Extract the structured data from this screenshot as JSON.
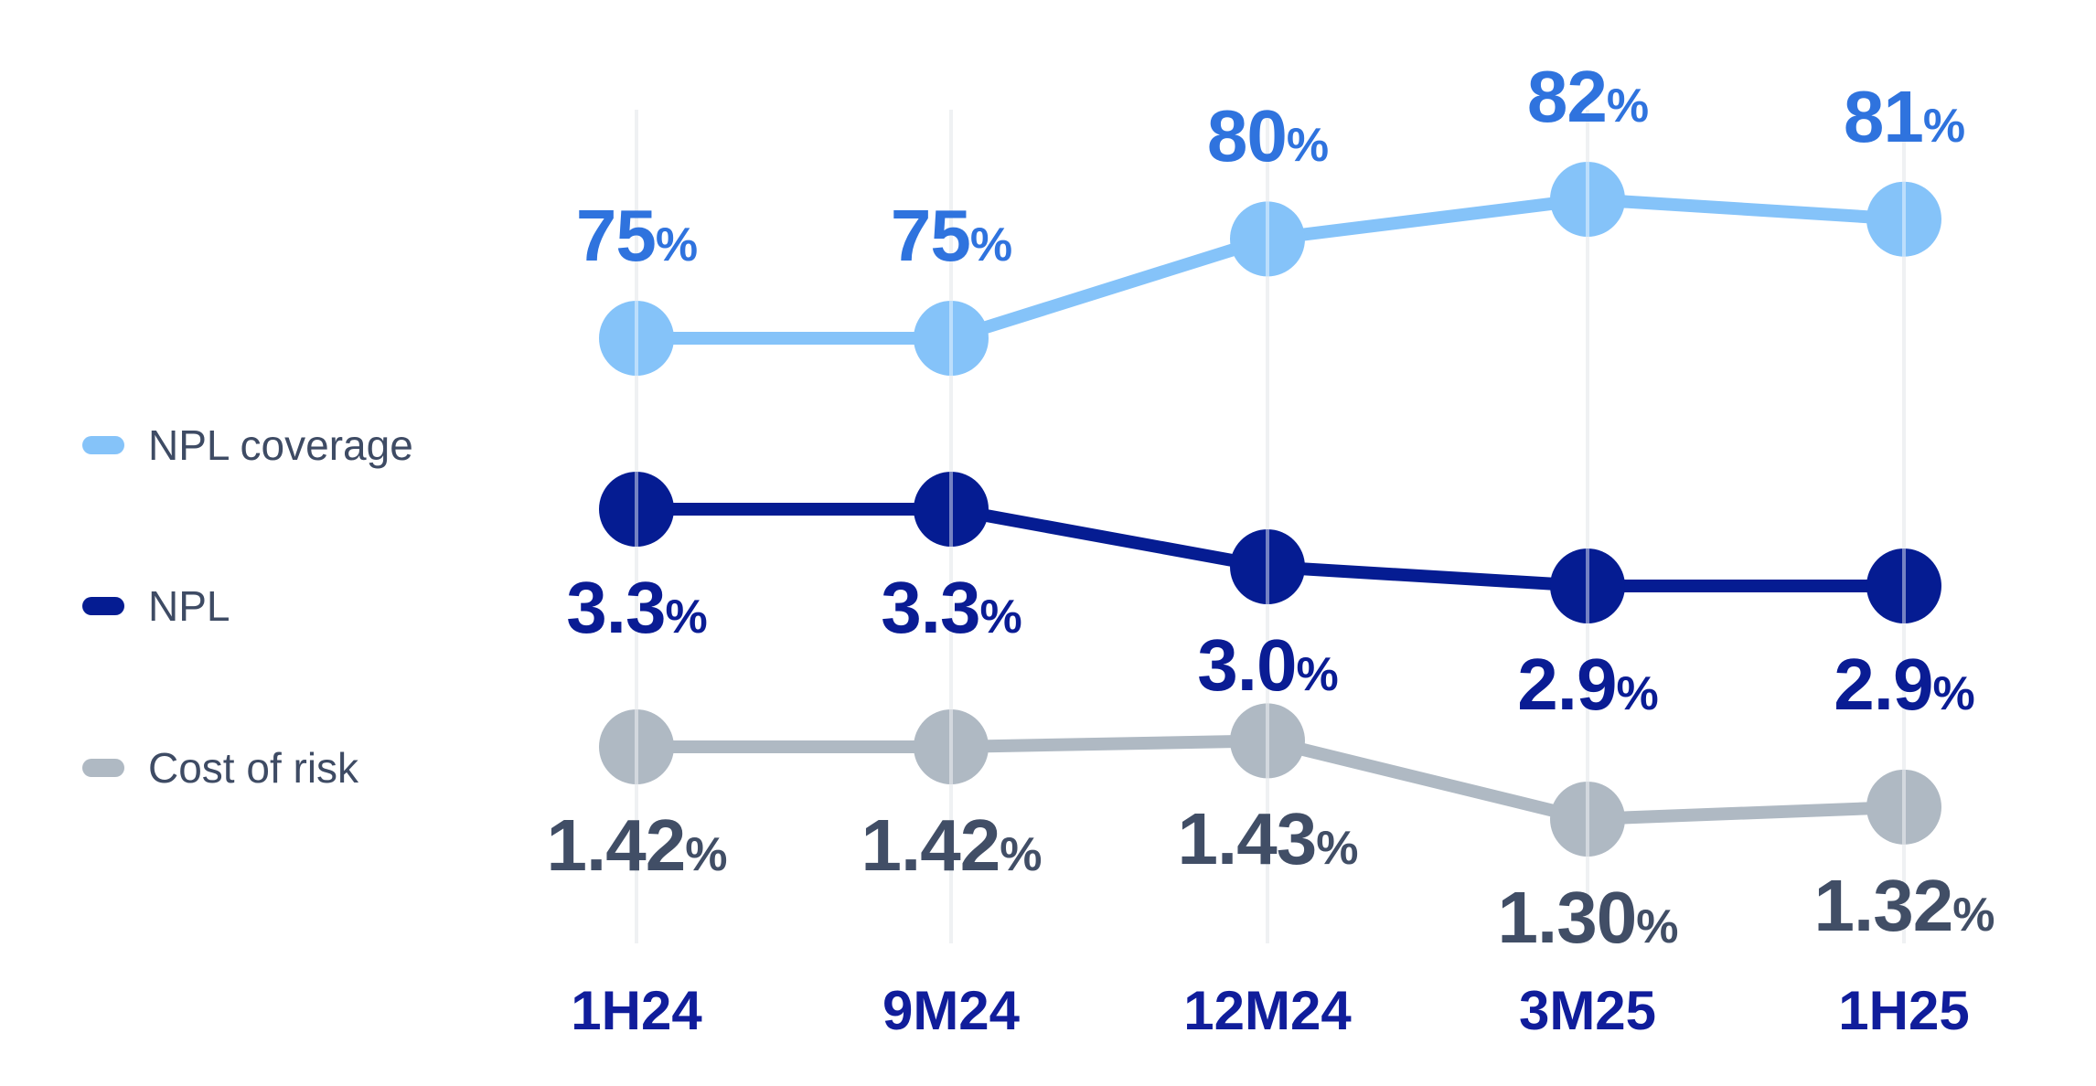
{
  "chart_data": {
    "type": "line",
    "categories": [
      "1H24",
      "9M24",
      "12M24",
      "3M25",
      "1H25"
    ],
    "series": [
      {
        "name": "NPL coverage",
        "values": [
          75,
          75,
          80,
          82,
          81
        ],
        "labels": [
          {
            "num": "75",
            "suffix": "%"
          },
          {
            "num": "75",
            "suffix": "%"
          },
          {
            "num": "80",
            "suffix": "%"
          },
          {
            "num": "82",
            "suffix": "%"
          },
          {
            "num": "81",
            "suffix": "%"
          }
        ],
        "color": "#85C3F9",
        "label_color": "#2F73DE",
        "label_position": "above"
      },
      {
        "name": "NPL",
        "values": [
          3.3,
          3.3,
          3.0,
          2.9,
          2.9
        ],
        "labels": [
          {
            "num": "3.3",
            "suffix": "%"
          },
          {
            "num": "3.3",
            "suffix": "%"
          },
          {
            "num": "3.0",
            "suffix": "%"
          },
          {
            "num": "2.9",
            "suffix": "%"
          },
          {
            "num": "2.9",
            "suffix": "%"
          }
        ],
        "color": "#051C92",
        "label_color": "#0A1C94",
        "label_position": "below"
      },
      {
        "name": "Cost of risk",
        "values": [
          1.42,
          1.42,
          1.43,
          1.3,
          1.32
        ],
        "labels": [
          {
            "num": "1.42",
            "suffix": "%"
          },
          {
            "num": "1.42",
            "suffix": "%"
          },
          {
            "num": "1.43",
            "suffix": "%"
          },
          {
            "num": "1.30",
            "suffix": "%"
          },
          {
            "num": "1.32",
            "suffix": "%"
          }
        ],
        "color": "#AFB9C3",
        "label_color": "#414E66",
        "label_position": "below"
      }
    ],
    "title": "",
    "xlabel": "",
    "ylabel": "",
    "grid": "vertical",
    "legend_position": "left",
    "background_color": "#FFFFFF",
    "gridline_color": "#E2E5E9",
    "axis_label_color": "#101D9B",
    "legend_text_color": "#3E4B64"
  },
  "legend": {
    "items": [
      {
        "label": "NPL coverage"
      },
      {
        "label": "NPL"
      },
      {
        "label": "Cost of risk"
      }
    ]
  }
}
